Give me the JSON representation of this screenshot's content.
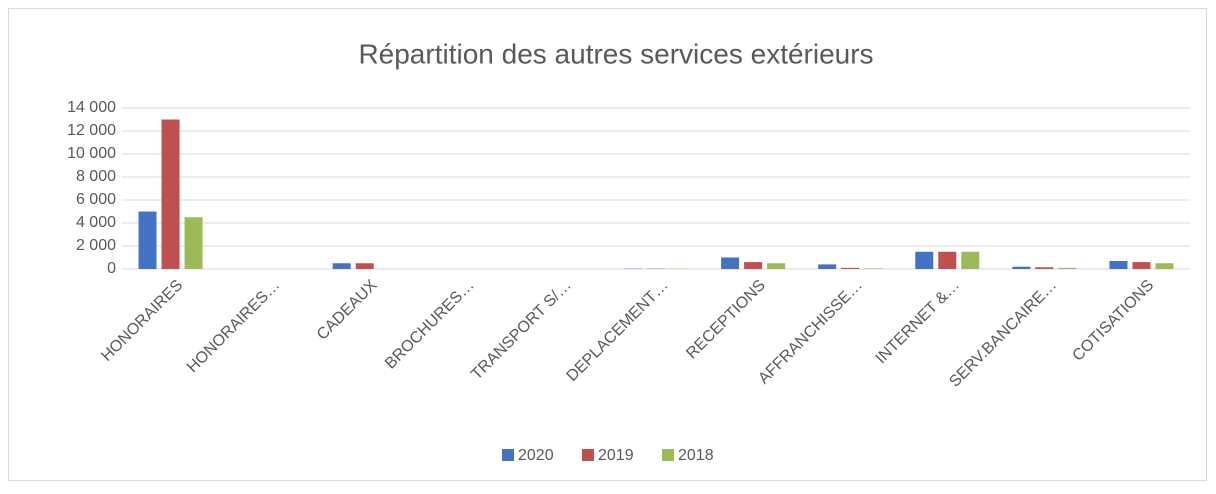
{
  "chart_data": {
    "type": "bar",
    "title": "Répartition des autres services extérieurs",
    "categories": [
      "HONORAIRES",
      "HONORAIRES…",
      "CADEAUX",
      "BROCHURES…",
      "TRANSPORT S/…",
      "DEPLACEMENT…",
      "RECEPTIONS",
      "AFFRANCHISSE…",
      "INTERNET &…",
      "SERV.BANCAIRE…",
      "COTISATIONS"
    ],
    "series": [
      {
        "name": "2020",
        "color": "#4472c4",
        "values": [
          5000,
          0,
          500,
          0,
          0,
          30,
          1000,
          400,
          1500,
          200,
          700
        ]
      },
      {
        "name": "2019",
        "color": "#c0504d",
        "values": [
          13000,
          0,
          500,
          0,
          0,
          30,
          600,
          100,
          1500,
          150,
          600
        ]
      },
      {
        "name": "2018",
        "color": "#9bbb59",
        "values": [
          4500,
          0,
          0,
          0,
          0,
          30,
          500,
          50,
          1500,
          100,
          500
        ]
      }
    ],
    "ylim": [
      0,
      14000
    ],
    "yticks": [
      0,
      {
        "value": 2000,
        "label": "2 000"
      },
      {
        "value": 4000,
        "label": "4 000"
      },
      {
        "value": 6000,
        "label": "6 000"
      },
      {
        "value": 8000,
        "label": "8 000"
      },
      {
        "value": 10000,
        "label": "10 000"
      },
      {
        "value": 12000,
        "label": "12 000"
      },
      {
        "value": 14000,
        "label": "14 000"
      }
    ],
    "grid": true,
    "legend": "bottom"
  }
}
